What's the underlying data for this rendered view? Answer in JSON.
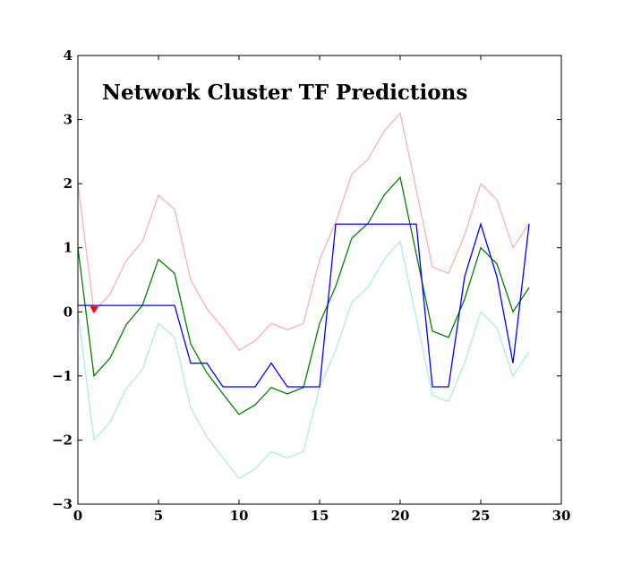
{
  "chart_data": {
    "type": "line",
    "title": "Network Cluster TF Predictions",
    "xlabel": "",
    "ylabel": "",
    "xlim": [
      0,
      30
    ],
    "ylim": [
      -3,
      4
    ],
    "xticks": [
      0,
      5,
      10,
      15,
      20,
      25,
      30
    ],
    "yticks": [
      -3,
      -2,
      -1,
      0,
      1,
      2,
      3,
      4
    ],
    "grid": false,
    "legend": "none",
    "x": [
      0,
      1,
      2,
      3,
      4,
      5,
      6,
      7,
      8,
      9,
      10,
      11,
      12,
      13,
      14,
      15,
      16,
      17,
      18,
      19,
      20,
      21,
      22,
      23,
      24,
      25,
      26,
      27,
      28
    ],
    "series": [
      {
        "color": "#ffb0b0",
        "values": [
          2.0,
          0.0,
          0.28,
          0.8,
          1.1,
          1.82,
          1.6,
          0.5,
          0.05,
          -0.25,
          -0.6,
          -0.45,
          -0.18,
          -0.28,
          -0.18,
          0.82,
          1.4,
          2.15,
          2.38,
          2.82,
          3.1,
          1.9,
          0.7,
          0.6,
          1.2,
          2.0,
          1.75,
          1.0,
          1.38
        ]
      },
      {
        "color": "#aeeaea",
        "values": [
          0.0,
          -2.0,
          -1.72,
          -1.2,
          -0.9,
          -0.18,
          -0.4,
          -1.5,
          -1.95,
          -2.28,
          -2.6,
          -2.45,
          -2.18,
          -2.28,
          -2.18,
          -1.18,
          -0.6,
          0.15,
          0.38,
          0.82,
          1.1,
          -0.1,
          -1.3,
          -1.4,
          -0.8,
          0.0,
          -0.25,
          -1.0,
          -0.62
        ]
      },
      {
        "color": "#008000",
        "values": [
          1.0,
          -1.0,
          -0.72,
          -0.2,
          0.1,
          0.82,
          0.6,
          -0.5,
          -0.95,
          -1.28,
          -1.6,
          -1.45,
          -1.18,
          -1.28,
          -1.18,
          -0.18,
          0.4,
          1.15,
          1.38,
          1.82,
          2.1,
          0.9,
          -0.3,
          -0.4,
          0.2,
          1.0,
          0.75,
          0.0,
          0.38
        ]
      },
      {
        "color": "#0000ff",
        "values": [
          0.1,
          0.1,
          0.1,
          0.1,
          0.1,
          0.1,
          0.1,
          -0.8,
          -0.8,
          -1.17,
          -1.17,
          -1.17,
          -0.8,
          -1.17,
          -1.17,
          -1.17,
          1.37,
          1.37,
          1.37,
          1.37,
          1.37,
          1.37,
          -1.17,
          -1.17,
          0.55,
          1.37,
          0.55,
          -0.8,
          1.37
        ]
      }
    ],
    "markers": [
      {
        "x": 1,
        "y": 0.03,
        "shape": "triangle-down",
        "color": "#ff0000"
      }
    ]
  }
}
